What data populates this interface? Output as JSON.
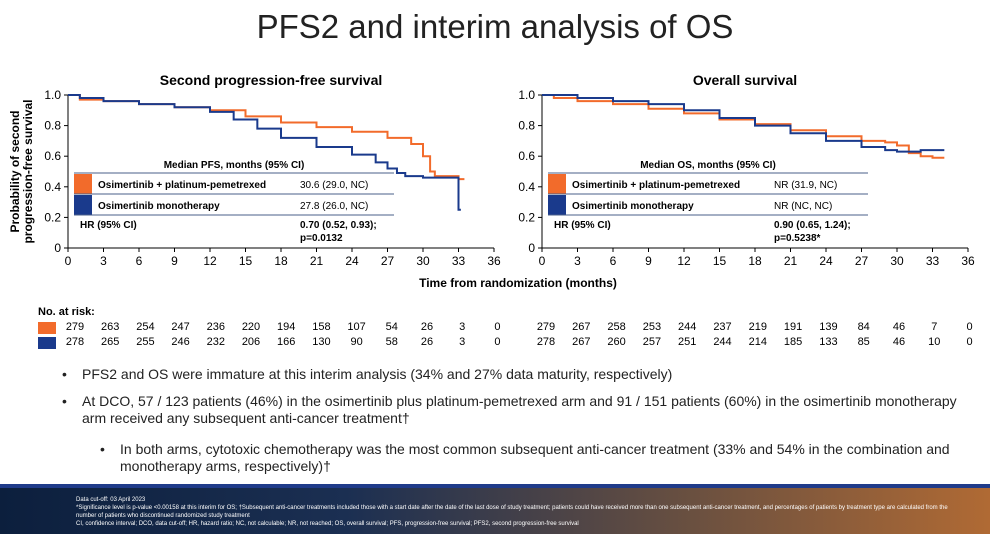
{
  "title": "PFS2 and interim analysis of OS",
  "x_axis_label": "Time from randomization (months)",
  "colors": {
    "combo": "#f26b2b",
    "mono": "#1a3a8c"
  },
  "chart_data": [
    {
      "type": "line",
      "title": "Second progression-free survival",
      "ylabel": "Probability of second progression-free survival",
      "xlabel": "Time from randomization (months)",
      "xlim": [
        0,
        36
      ],
      "ylim": [
        0,
        1.0
      ],
      "xticks": [
        0,
        3,
        6,
        9,
        12,
        15,
        18,
        21,
        24,
        27,
        30,
        33,
        36
      ],
      "yticks": [
        "0",
        "0.2",
        "0.4",
        "0.6",
        "0.8",
        "1.0"
      ],
      "series": [
        {
          "name": "Osimertinib + platinum-pemetrexed",
          "color": "#f26b2b",
          "x": [
            0,
            1,
            3,
            6,
            9,
            12,
            15,
            18,
            21,
            24,
            27,
            29,
            30,
            30.6,
            31,
            32,
            33,
            33.5
          ],
          "y": [
            1.0,
            0.97,
            0.96,
            0.94,
            0.92,
            0.9,
            0.86,
            0.82,
            0.79,
            0.76,
            0.72,
            0.68,
            0.6,
            0.5,
            0.47,
            0.47,
            0.45,
            0.45
          ]
        },
        {
          "name": "Osimertinib monotherapy",
          "color": "#1a3a8c",
          "x": [
            0,
            1,
            3,
            6,
            9,
            12,
            14,
            16,
            18,
            21,
            24,
            26,
            27,
            27.8,
            28.5,
            30,
            32,
            33,
            33,
            33.2
          ],
          "y": [
            1.0,
            0.98,
            0.96,
            0.94,
            0.92,
            0.89,
            0.84,
            0.78,
            0.72,
            0.66,
            0.61,
            0.56,
            0.52,
            0.49,
            0.47,
            0.46,
            0.46,
            0.46,
            0.25,
            0.25
          ]
        }
      ],
      "legend_title": "Median PFS, months (95% CI)",
      "legend_rows": [
        {
          "label": "Osimertinib + platinum-pemetrexed",
          "value": "30.6 (29.0, NC)"
        },
        {
          "label": "Osimertinib monotherapy",
          "value": "27.8 (26.0, NC)"
        }
      ],
      "hr_label": "HR (95% CI)",
      "hr_value": "0.70 (0.52, 0.93);",
      "hr_p": "p=0.0132"
    },
    {
      "type": "line",
      "title": "Overall survival",
      "ylabel": "",
      "xlabel": "Time from randomization (months)",
      "xlim": [
        0,
        36
      ],
      "ylim": [
        0,
        1.0
      ],
      "xticks": [
        0,
        3,
        6,
        9,
        12,
        15,
        18,
        21,
        24,
        27,
        30,
        33,
        36
      ],
      "yticks": [
        "0",
        "0.2",
        "0.4",
        "0.6",
        "0.8",
        "1.0"
      ],
      "series": [
        {
          "name": "Osimertinib + platinum-pemetrexed",
          "color": "#f26b2b",
          "x": [
            0,
            1,
            3,
            6,
            9,
            12,
            15,
            18,
            21,
            24,
            27,
            29,
            30,
            31,
            32,
            33,
            34
          ],
          "y": [
            1.0,
            0.98,
            0.96,
            0.94,
            0.91,
            0.88,
            0.84,
            0.81,
            0.77,
            0.73,
            0.7,
            0.69,
            0.67,
            0.62,
            0.6,
            0.59,
            0.59
          ]
        },
        {
          "name": "Osimertinib monotherapy",
          "color": "#1a3a8c",
          "x": [
            0,
            1,
            3,
            6,
            9,
            12,
            15,
            18,
            21,
            24,
            27,
            29,
            30,
            31,
            32,
            34
          ],
          "y": [
            1.0,
            1.0,
            0.98,
            0.96,
            0.94,
            0.9,
            0.85,
            0.8,
            0.75,
            0.7,
            0.66,
            0.64,
            0.63,
            0.63,
            0.64,
            0.64
          ]
        }
      ],
      "legend_title": "Median OS, months (95% CI)",
      "legend_rows": [
        {
          "label": "Osimertinib + platinum-pemetrexed",
          "value": "NR (31.9, NC)"
        },
        {
          "label": "Osimertinib monotherapy",
          "value": "NR (NC, NC)"
        }
      ],
      "hr_label": "HR (95% CI)",
      "hr_value": "0.90 (0.65, 1.24);",
      "hr_p": "p=0.5238*"
    }
  ],
  "at_risk": {
    "label": "No. at risk:",
    "pfs2": {
      "combo": [
        "279",
        "263",
        "254",
        "247",
        "236",
        "220",
        "194",
        "158",
        "107",
        "54",
        "26",
        "3",
        "0"
      ],
      "mono": [
        "278",
        "265",
        "255",
        "246",
        "232",
        "206",
        "166",
        "130",
        "90",
        "58",
        "26",
        "3",
        "0"
      ]
    },
    "os": {
      "combo": [
        "279",
        "267",
        "258",
        "253",
        "244",
        "237",
        "219",
        "191",
        "139",
        "84",
        "46",
        "7",
        "0"
      ],
      "mono": [
        "278",
        "267",
        "260",
        "257",
        "251",
        "244",
        "214",
        "185",
        "133",
        "85",
        "46",
        "10",
        "0"
      ]
    }
  },
  "bullets": [
    "PFS2 and OS were immature at this interim analysis (34% and 27% data maturity, respectively)",
    "At DCO, 57 / 123 patients (46%) in the osimertinib plus platinum-pemetrexed arm and 91 / 151 patients (60%) in the osimertinib monotherapy arm received any subsequent anti-cancer treatment†"
  ],
  "sub_bullet": "In both arms, cytotoxic chemotherapy was the most common subsequent anti-cancer treatment (33% and 54% in the combination and monotherapy arms, respectively)†",
  "footnotes": [
    "Data cut-off: 03 April 2023",
    "*Significance level is p-value <0.00158 at this interim for OS; †Subsequent anti-cancer treatments included those with a start date after the date of the last dose of study treatment; patients could have received more than one subsequent anti-cancer treatment, and percentages of patients by treatment type are calculated from the number of patients who discontinued randomized study treatment",
    "CI, confidence interval; DCO, data cut-off; HR, hazard ratio; NC, not calculable; NR, not reached; OS, overall survival; PFS, progression-free survival; PFS2, second progression-free survival"
  ]
}
